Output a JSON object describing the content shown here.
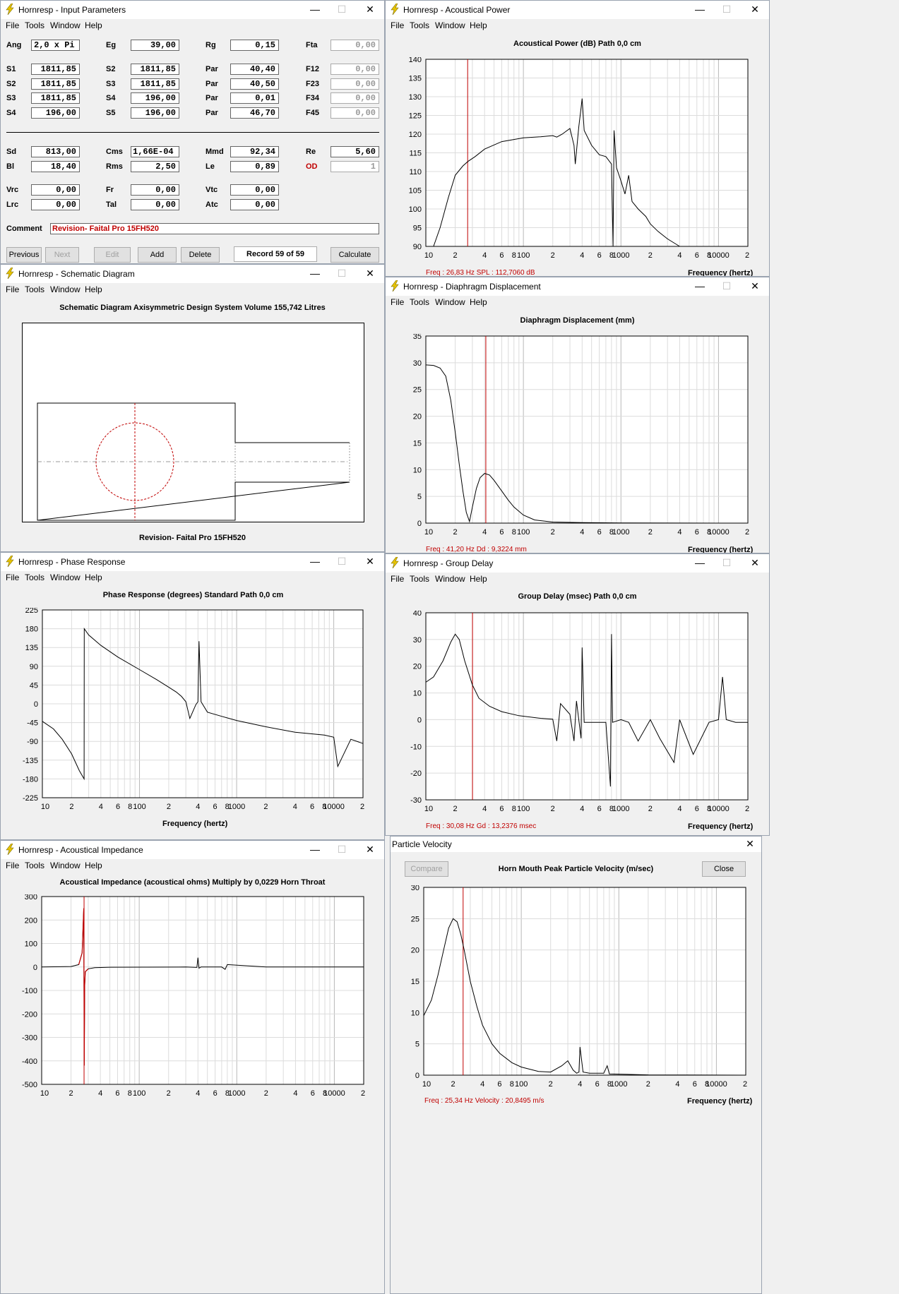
{
  "menu": {
    "file": "File",
    "tools": "Tools",
    "window": "Window",
    "help": "Help"
  },
  "controls": {
    "min": "—",
    "max": "☐",
    "close": "✕"
  },
  "input_params": {
    "title": "Hornresp - Input Parameters",
    "row1": [
      {
        "label": "Ang",
        "value": "2,0 x Pi"
      },
      {
        "label": "Eg",
        "value": "39,00"
      },
      {
        "label": "Rg",
        "value": "0,15"
      },
      {
        "label": "Fta",
        "value": "0,00"
      }
    ],
    "s_rows": [
      [
        {
          "label": "S1",
          "value": "1811,85"
        },
        {
          "label": "S2",
          "value": "1811,85"
        },
        {
          "label": "Par",
          "value": "40,40"
        },
        {
          "label": "F12",
          "value": "0,00"
        }
      ],
      [
        {
          "label": "S2",
          "value": "1811,85"
        },
        {
          "label": "S3",
          "value": "1811,85"
        },
        {
          "label": "Par",
          "value": "40,50"
        },
        {
          "label": "F23",
          "value": "0,00"
        }
      ],
      [
        {
          "label": "S3",
          "value": "1811,85"
        },
        {
          "label": "S4",
          "value": "196,00"
        },
        {
          "label": "Par",
          "value": "0,01"
        },
        {
          "label": "F34",
          "value": "0,00"
        }
      ],
      [
        {
          "label": "S4",
          "value": "196,00"
        },
        {
          "label": "S5",
          "value": "196,00"
        },
        {
          "label": "Par",
          "value": "46,70"
        },
        {
          "label": "F45",
          "value": "0,00"
        }
      ]
    ],
    "d_rows": [
      [
        {
          "label": "Sd",
          "value": "813,00"
        },
        {
          "label": "Cms",
          "value": "1,66E-04"
        },
        {
          "label": "Mmd",
          "value": "92,34"
        },
        {
          "label": "Re",
          "value": "5,60"
        }
      ],
      [
        {
          "label": "Bl",
          "value": "18,40"
        },
        {
          "label": "Rms",
          "value": "2,50"
        },
        {
          "label": "Le",
          "value": "0,89"
        },
        {
          "label": "OD",
          "value": "1"
        }
      ]
    ],
    "c_rows": [
      [
        {
          "label": "Vrc",
          "value": "0,00"
        },
        {
          "label": "Fr",
          "value": "0,00"
        },
        {
          "label": "Vtc",
          "value": "0,00"
        }
      ],
      [
        {
          "label": "Lrc",
          "value": "0,00"
        },
        {
          "label": "Tal",
          "value": "0,00"
        },
        {
          "label": "Atc",
          "value": "0,00"
        }
      ]
    ],
    "comment_label": "Comment",
    "comment_value": "Revision- Faital Pro 15FH520",
    "buttons": {
      "previous": "Previous",
      "next": "Next",
      "edit": "Edit",
      "add": "Add",
      "delete": "Delete",
      "record": "Record 59 of 59",
      "calculate": "Calculate"
    }
  },
  "schematic": {
    "title": "Hornresp - Schematic Diagram",
    "heading": "Schematic Diagram   Axisymmetric Design   System Volume 155,742 Litres",
    "footer": "Revision- Faital Pro 15FH520"
  },
  "x_ticks": [
    "10",
    "2",
    "4",
    "6",
    "8",
    "100",
    "2",
    "4",
    "6",
    "8",
    "1000",
    "2",
    "4",
    "6",
    "8",
    "10000",
    "2"
  ],
  "xaxis_label": "Frequency (hertz)",
  "acoustical_power": {
    "title": "Hornresp - Acoustical Power",
    "heading": "Acoustical Power (dB)   Path 0,0 cm",
    "readout": "Freq : 26,83 Hz     SPL : 112,7060 dB"
  },
  "diaphragm": {
    "title": "Hornresp - Diaphragm Displacement",
    "heading": "Diaphragm Displacement (mm)",
    "readout": "Freq : 41,20 Hz     Dd : 9,3224 mm"
  },
  "phase": {
    "title": "Hornresp - Phase Response",
    "heading": "Phase Response (degrees)   Standard   Path 0,0 cm"
  },
  "group_delay": {
    "title": "Hornresp - Group Delay",
    "heading": "Group Delay (msec)   Path 0,0 cm",
    "readout": "Freq : 30,08 Hz     Gd : 13,2376 msec"
  },
  "impedance": {
    "title": "Hornresp - Acoustical Impedance",
    "heading": "Acoustical Impedance (acoustical ohms)   Multiply by 0,0229   Horn Throat"
  },
  "particle": {
    "title": "Particle Velocity",
    "heading": "Horn Mouth Peak Particle Velocity (m/sec)",
    "compare": "Compare",
    "close": "Close",
    "readout": "Freq : 25,34 Hz     Velocity : 20,8495 m/s"
  },
  "chart_data": [
    {
      "id": "acoustical_power",
      "type": "line",
      "title": "Acoustical Power (dB)   Path 0,0 cm",
      "xlabel": "Frequency (hertz)",
      "xscale": "log",
      "xlim": [
        10,
        20000
      ],
      "ylim": [
        90,
        140
      ],
      "yticks": [
        "140",
        "135",
        "130",
        "125",
        "120",
        "115",
        "110",
        "105",
        "100",
        "95",
        "90"
      ],
      "marker_x": 26.83,
      "x": [
        12,
        14,
        17,
        20,
        24,
        27,
        32,
        40,
        60,
        100,
        150,
        200,
        220,
        250,
        300,
        330,
        340,
        370,
        390,
        400,
        420,
        500,
        600,
        700,
        800,
        830,
        850,
        900,
        1000,
        1100,
        1200,
        1300,
        1500,
        1800,
        2000,
        2400,
        3000,
        4000
      ],
      "y": [
        88,
        95,
        103,
        109,
        111.5,
        112.7,
        114,
        116,
        118,
        119,
        119.3,
        119.6,
        119.2,
        120,
        121.5,
        117,
        112,
        122,
        127,
        129.5,
        121,
        117,
        114.5,
        114,
        112,
        86,
        121,
        111,
        107.5,
        104,
        109,
        102,
        100,
        98,
        96,
        94,
        92,
        90
      ]
    },
    {
      "id": "diaphragm",
      "type": "line",
      "title": "Diaphragm Displacement (mm)",
      "xlabel": "Frequency (hertz)",
      "xscale": "log",
      "xlim": [
        10,
        20000
      ],
      "ylim": [
        0,
        35
      ],
      "yticks": [
        "35",
        "30",
        "25",
        "20",
        "15",
        "10",
        "5",
        "0"
      ],
      "marker_x": 41.2,
      "x": [
        10,
        12,
        14,
        16,
        18,
        20,
        22,
        24,
        26,
        28,
        30,
        33,
        36,
        40,
        45,
        50,
        60,
        70,
        80,
        100,
        130,
        200,
        400,
        1000,
        20000
      ],
      "y": [
        29.6,
        29.5,
        29,
        27.5,
        23,
        17,
        11,
        6,
        2,
        0.3,
        3,
        6.5,
        8.5,
        9.3,
        9,
        8,
        6,
        4.3,
        3,
        1.5,
        0.6,
        0.2,
        0.1,
        0.02,
        0
      ]
    },
    {
      "id": "phase",
      "type": "line",
      "title": "Phase Response (degrees)   Standard   Path 0,0 cm",
      "xlabel": "Frequency (hertz)",
      "xscale": "log",
      "xlim": [
        10,
        20000
      ],
      "ylim": [
        -225,
        225
      ],
      "yticks": [
        "225",
        "180",
        "135",
        "90",
        "45",
        "0",
        "-45",
        "-90",
        "-135",
        "-180",
        "-225"
      ],
      "x": [
        10,
        13,
        16,
        20,
        24,
        26.9,
        27,
        30,
        40,
        60,
        100,
        150,
        200,
        240,
        270,
        300,
        330,
        380,
        400,
        410,
        430,
        500,
        700,
        1000,
        2000,
        4000,
        8000,
        10000,
        11000,
        15000,
        20000
      ],
      "y": [
        -42,
        -60,
        -85,
        -120,
        -160,
        -180,
        180,
        165,
        140,
        112,
        82,
        58,
        40,
        28,
        18,
        5,
        -35,
        -2,
        5,
        150,
        5,
        -20,
        -30,
        -40,
        -55,
        -68,
        -75,
        -80,
        -150,
        -85,
        -95
      ]
    },
    {
      "id": "group_delay",
      "type": "line",
      "title": "Group Delay (msec)   Path 0,0 cm",
      "xlabel": "Frequency (hertz)",
      "xscale": "log",
      "xlim": [
        10,
        20000
      ],
      "ylim": [
        -30,
        40
      ],
      "yticks": [
        "40",
        "30",
        "20",
        "10",
        "0",
        "-10",
        "-20",
        "-30"
      ],
      "marker_x": 30.08,
      "x": [
        10,
        12,
        15,
        18,
        20,
        22,
        25,
        30,
        35,
        45,
        60,
        90,
        150,
        200,
        220,
        240,
        300,
        330,
        350,
        390,
        400,
        420,
        700,
        780,
        800,
        820,
        1000,
        1200,
        1500,
        2000,
        2500,
        3500,
        4000,
        5500,
        8000,
        10000,
        11000,
        12000,
        15000,
        20000
      ],
      "y": [
        14,
        16,
        22,
        29,
        32,
        30,
        22,
        13,
        8,
        5,
        3,
        1.5,
        0.5,
        0.2,
        -8,
        6,
        2,
        -8,
        7,
        -7,
        27,
        -1,
        -1,
        -25,
        32,
        -1,
        0,
        -1,
        -8,
        0,
        -7,
        -16,
        0,
        -13,
        -1,
        0,
        16,
        0,
        -1,
        -1
      ]
    },
    {
      "id": "impedance",
      "type": "line",
      "title": "Acoustical Impedance (acoustical ohms)   Multiply by 0,0229   Horn Throat",
      "xlabel": "Frequency (hertz)",
      "xscale": "log",
      "xlim": [
        10,
        20000
      ],
      "ylim": [
        -500,
        300
      ],
      "yticks": [
        "300",
        "200",
        "100",
        "0",
        "-100",
        "-200",
        "-300",
        "-400",
        "-500"
      ],
      "x": [
        10,
        20,
        24,
        26,
        27,
        27.3,
        27.6,
        28,
        30,
        35,
        50,
        300,
        390,
        400,
        410,
        430,
        700,
        760,
        800,
        2000,
        10000,
        20000
      ],
      "y": [
        0,
        2,
        10,
        60,
        250,
        -420,
        -80,
        -20,
        -8,
        -3,
        -1,
        0,
        -2,
        40,
        -5,
        0,
        0,
        -10,
        10,
        0,
        0,
        0
      ]
    },
    {
      "id": "particle",
      "type": "line",
      "title": "Horn Mouth Peak Particle Velocity (m/sec)",
      "xlabel": "Frequency (hertz)",
      "xscale": "log",
      "xlim": [
        10,
        20000
      ],
      "ylim": [
        0,
        30
      ],
      "yticks": [
        "30",
        "25",
        "20",
        "15",
        "10",
        "5",
        "0"
      ],
      "marker_x": 25.34,
      "x": [
        10,
        12,
        14,
        16,
        18,
        20,
        22,
        24,
        26,
        30,
        35,
        40,
        50,
        60,
        80,
        100,
        150,
        200,
        260,
        300,
        340,
        370,
        390,
        400,
        430,
        500,
        700,
        760,
        800,
        2000,
        20000
      ],
      "y": [
        9.5,
        12,
        16,
        20,
        23.5,
        25,
        24.5,
        22.5,
        20,
        15,
        11,
        8,
        5,
        3.5,
        2,
        1.3,
        0.6,
        0.5,
        1.5,
        2.3,
        0.8,
        0.3,
        0.5,
        4.5,
        0.5,
        0.3,
        0.3,
        1.5,
        0.2,
        0.05,
        0
      ]
    }
  ]
}
